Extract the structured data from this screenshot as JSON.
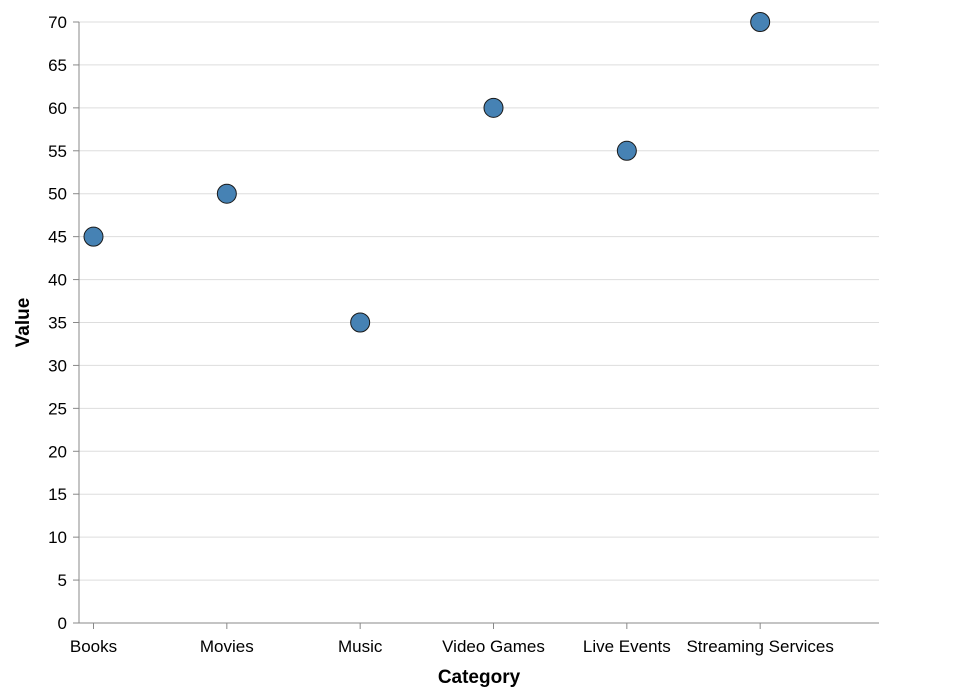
{
  "chart_data": {
    "type": "scatter",
    "title": "",
    "xlabel": "Category",
    "ylabel": "Value",
    "categories": [
      "Books",
      "Movies",
      "Music",
      "Video Games",
      "Live Events",
      "Streaming Services"
    ],
    "values": [
      45,
      50,
      35,
      60,
      55,
      70
    ],
    "ylim": [
      0,
      70
    ],
    "yticks": [
      0,
      5,
      10,
      15,
      20,
      25,
      30,
      35,
      40,
      45,
      50,
      55,
      60,
      65,
      70
    ],
    "grid": "horizontal",
    "point_color": "#4682b4",
    "point_stroke": "#1a1a1a",
    "grid_color": "#dddddd",
    "axis_color": "#888888"
  }
}
